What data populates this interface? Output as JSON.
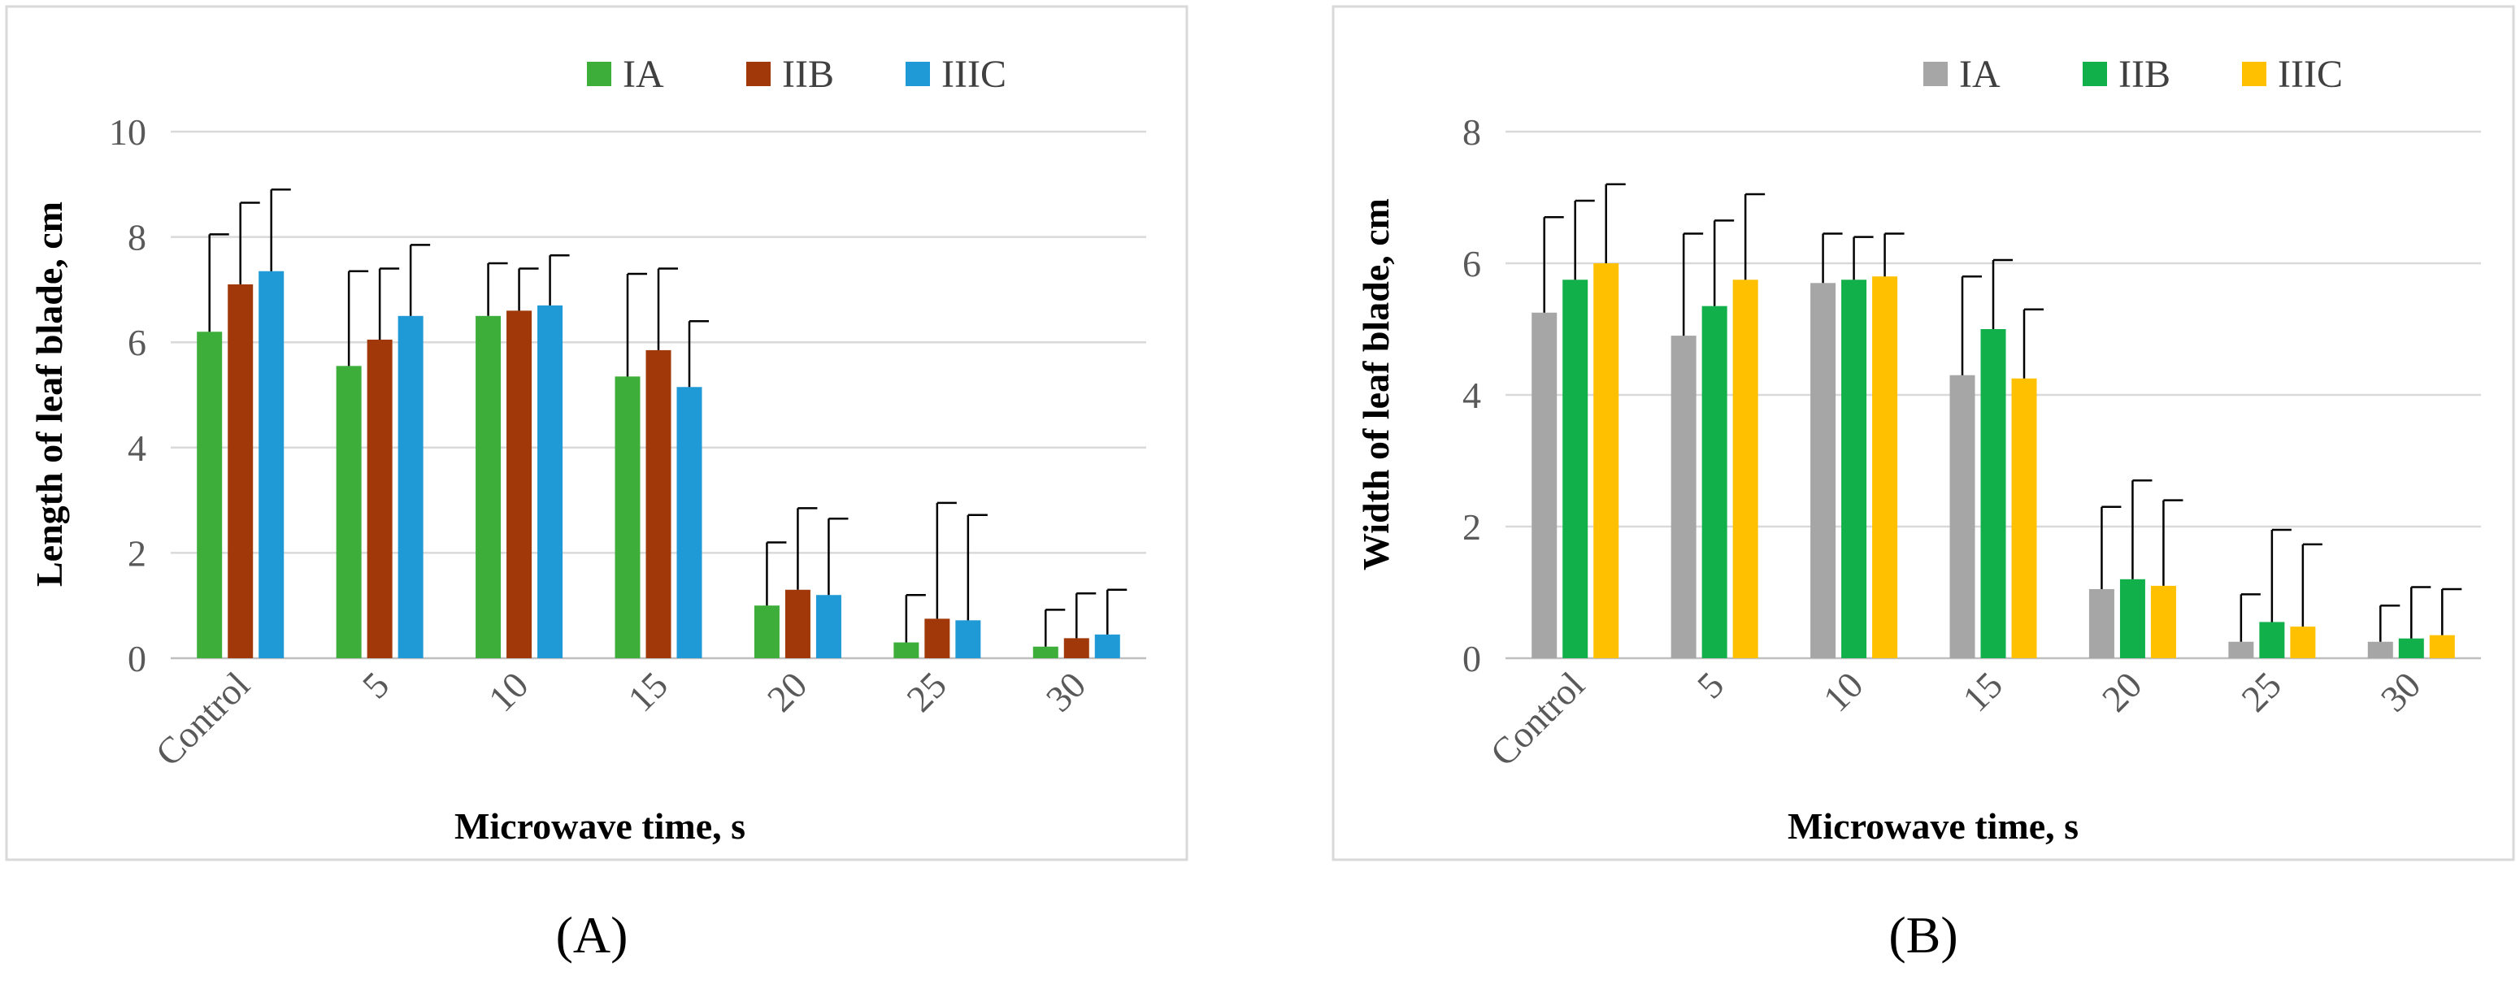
{
  "chart_data": [
    {
      "type": "bar",
      "panel_label": "A",
      "panel_tag": "(A)",
      "title": "",
      "xlabel": "Microwave time, s",
      "ylabel": "Length of leaf blade, cm",
      "categories": [
        "Control",
        "5",
        "10",
        "15",
        "20",
        "25",
        "30"
      ],
      "yticks": [
        "0",
        "2",
        "4",
        "6",
        "8",
        "10"
      ],
      "ylim": [
        0,
        10
      ],
      "grid": true,
      "legend_position": "top-right",
      "series": [
        {
          "name": "IA",
          "color": "#3dae3a",
          "values": [
            6.2,
            5.55,
            6.5,
            5.35,
            1.0,
            0.3,
            0.22
          ],
          "errors": [
            1.85,
            1.8,
            1.0,
            1.95,
            1.2,
            0.9,
            0.7
          ]
        },
        {
          "name": "IIB",
          "color": "#a0380a",
          "values": [
            7.1,
            6.05,
            6.6,
            5.85,
            1.3,
            0.75,
            0.38
          ],
          "errors": [
            1.55,
            1.35,
            0.8,
            1.55,
            1.55,
            2.2,
            0.85
          ]
        },
        {
          "name": "IIIC",
          "color": "#1f9ad6",
          "values": [
            7.35,
            6.5,
            6.7,
            5.15,
            1.2,
            0.72,
            0.45
          ],
          "errors": [
            1.55,
            1.35,
            0.95,
            1.25,
            1.45,
            2.0,
            0.85
          ]
        }
      ]
    },
    {
      "type": "bar",
      "panel_label": "B",
      "panel_tag": "(B)",
      "title": "",
      "xlabel": "Microwave time, s",
      "ylabel": "Width of leaf blade, cm",
      "categories": [
        "Control",
        "5",
        "10",
        "15",
        "20",
        "25",
        "30"
      ],
      "yticks": [
        "0",
        "2",
        "4",
        "6",
        "8"
      ],
      "ylim": [
        0,
        8
      ],
      "grid": true,
      "legend_position": "top-right",
      "series": [
        {
          "name": "IA",
          "color": "#a6a6a6",
          "values": [
            5.25,
            4.9,
            5.7,
            4.3,
            1.05,
            0.25,
            0.25
          ],
          "errors": [
            1.45,
            1.55,
            0.75,
            1.5,
            1.25,
            0.72,
            0.55
          ]
        },
        {
          "name": "IIB",
          "color": "#12b04b",
          "values": [
            5.75,
            5.35,
            5.75,
            5.0,
            1.2,
            0.55,
            0.3
          ],
          "errors": [
            1.2,
            1.3,
            0.65,
            1.05,
            1.5,
            1.4,
            0.78
          ]
        },
        {
          "name": "IIIC",
          "color": "#ffc000",
          "values": [
            6.0,
            5.75,
            5.8,
            4.25,
            1.1,
            0.48,
            0.35
          ],
          "errors": [
            1.2,
            1.3,
            0.65,
            1.05,
            1.3,
            1.25,
            0.7
          ]
        }
      ]
    }
  ]
}
